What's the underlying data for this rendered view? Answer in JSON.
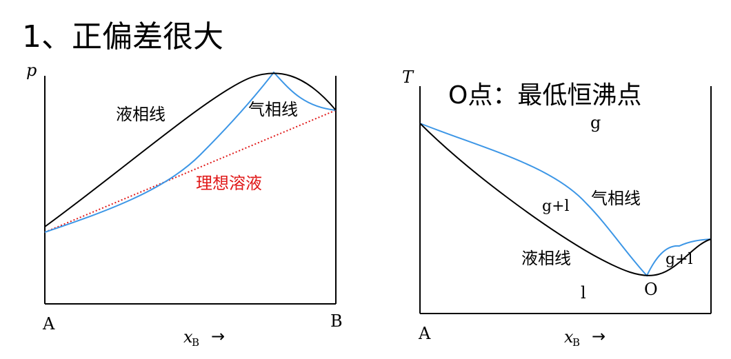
{
  "heading": "1、正偏差很大",
  "left_diagram": {
    "y_axis_label": "p",
    "left_end_label": "A",
    "right_end_label": "B",
    "x_axis_label": "x",
    "x_axis_subscript": "B",
    "x_axis_arrow": "→",
    "liquid_line_label": "液相线",
    "vapor_line_label": "气相线",
    "ideal_solution_label": "理想溶液"
  },
  "right_diagram": {
    "y_axis_label": "T",
    "title": "O点：最低恒沸点",
    "left_end_label": "A",
    "x_axis_label": "x",
    "x_axis_subscript": "B",
    "x_axis_arrow": "→",
    "gas_region_label": "g",
    "two_phase_left_label": "g+l",
    "vapor_line_label": "气相线",
    "liquid_line_label": "液相线",
    "two_phase_right_label": "g+l",
    "liquid_region_label": "l",
    "azeotrope_label": "O"
  },
  "colors": {
    "ink": "#000000",
    "vapor_curve": "#3c96e6",
    "ideal_line": "#e01818",
    "liquid_curve": "#000000"
  }
}
